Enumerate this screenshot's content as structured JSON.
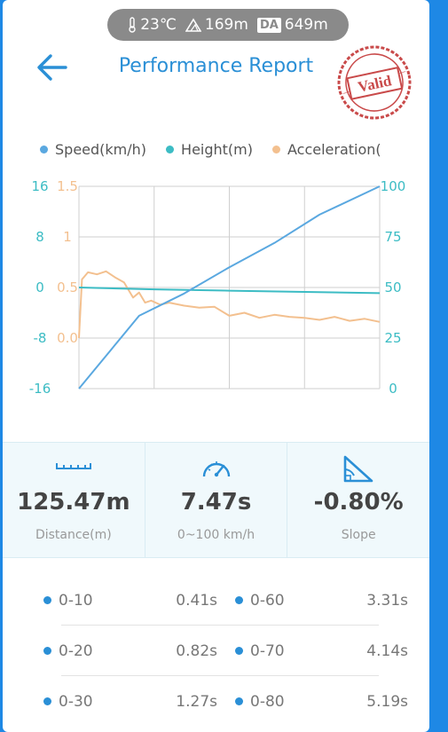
{
  "env": {
    "temperature": "23℃",
    "altitude": "169m",
    "da_badge": "DA",
    "density_altitude": "649m"
  },
  "header": {
    "title": "Performance Report",
    "stamp_text": "Valid"
  },
  "colors": {
    "speed": "#5aa8e0",
    "height": "#3cbcc4",
    "acceleration": "#f3c08f",
    "accent": "#2a8fd6",
    "stamp": "#c94a4a"
  },
  "chart_data": {
    "type": "line",
    "legend": [
      "Speed(km/h)",
      "Height(m)",
      "Acceleration("
    ],
    "axes": {
      "height_ticks": [
        "16",
        "8",
        "0",
        "-8",
        "-16"
      ],
      "accel_ticks": [
        "1.5",
        "1",
        "0.5",
        "0.0"
      ],
      "speed_ticks": [
        "100",
        "75",
        "50",
        "25",
        "0"
      ],
      "speed_range": [
        0,
        100
      ],
      "height_range": [
        -16,
        16
      ],
      "accel_range": [
        -0.5,
        1.5
      ],
      "grid": true
    },
    "series": [
      {
        "name": "Speed(km/h)",
        "t": [
          0,
          0.2,
          0.35,
          0.5,
          0.65,
          0.8,
          1.0
        ],
        "values": [
          0,
          36,
          47,
          60,
          72,
          86,
          100
        ]
      },
      {
        "name": "Height(m)",
        "t": [
          0,
          0.25,
          0.5,
          0.75,
          1.0
        ],
        "values": [
          0.0,
          -0.3,
          -0.5,
          -0.7,
          -0.9
        ]
      },
      {
        "name": "Acceleration(",
        "t": [
          0,
          0.01,
          0.03,
          0.06,
          0.09,
          0.12,
          0.15,
          0.18,
          0.2,
          0.22,
          0.24,
          0.27,
          0.3,
          0.35,
          0.4,
          0.45,
          0.5,
          0.55,
          0.6,
          0.65,
          0.7,
          0.75,
          0.8,
          0.85,
          0.9,
          0.95,
          1.0
        ],
        "values": [
          0.0,
          0.58,
          0.65,
          0.63,
          0.66,
          0.6,
          0.55,
          0.4,
          0.45,
          0.35,
          0.37,
          0.33,
          0.35,
          0.32,
          0.3,
          0.31,
          0.22,
          0.25,
          0.2,
          0.23,
          0.21,
          0.2,
          0.18,
          0.21,
          0.17,
          0.19,
          0.16
        ]
      }
    ]
  },
  "stats": [
    {
      "icon": "ruler-icon",
      "value": "125.47m",
      "label": "Distance(m)"
    },
    {
      "icon": "speedometer-icon",
      "value": "7.47s",
      "label": "0~100 km/h"
    },
    {
      "icon": "slope-icon",
      "value": "-0.80%",
      "label": "Slope"
    }
  ],
  "splits": [
    {
      "left_name": "0-10",
      "left_time": "0.41s",
      "right_name": "0-60",
      "right_time": "3.31s"
    },
    {
      "left_name": "0-20",
      "left_time": "0.82s",
      "right_name": "0-70",
      "right_time": "4.14s"
    },
    {
      "left_name": "0-30",
      "left_time": "1.27s",
      "right_name": "0-80",
      "right_time": "5.19s"
    }
  ]
}
